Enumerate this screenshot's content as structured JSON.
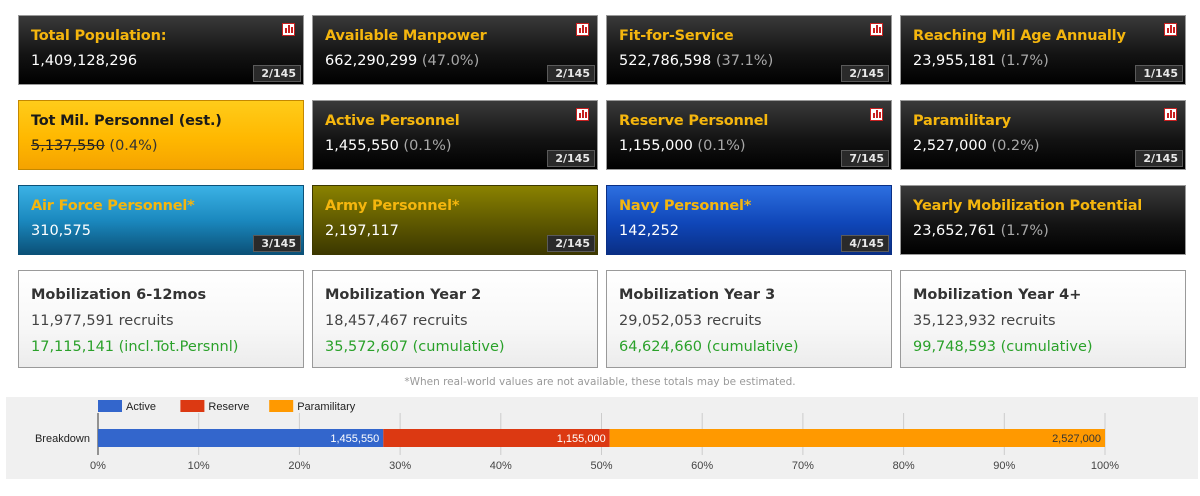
{
  "cards": {
    "total_population": {
      "title": "Total Population:",
      "value": "1,409,128,296",
      "pct": "",
      "rank": "2/145"
    },
    "available_manpower": {
      "title": "Available Manpower",
      "value": "662,290,299",
      "pct": "(47.0%)",
      "rank": "2/145"
    },
    "fit_for_service": {
      "title": "Fit-for-Service",
      "value": "522,786,598",
      "pct": "(37.1%)",
      "rank": "2/145"
    },
    "reaching_mil_age": {
      "title": "Reaching Mil Age Annually",
      "value": "23,955,181",
      "pct": "(1.7%)",
      "rank": "1/145"
    },
    "tot_mil_personnel": {
      "title": "Tot Mil. Personnel (est.)",
      "value": "5,137,550",
      "pct": "(0.4%)"
    },
    "active_personnel": {
      "title": "Active Personnel",
      "value": "1,455,550",
      "pct": "(0.1%)",
      "rank": "2/145"
    },
    "reserve_personnel": {
      "title": "Reserve Personnel",
      "value": "1,155,000",
      "pct": "(0.1%)",
      "rank": "7/145"
    },
    "paramilitary": {
      "title": "Paramilitary",
      "value": "2,527,000",
      "pct": "(0.2%)",
      "rank": "2/145"
    },
    "air_force": {
      "title": "Air Force Personnel*",
      "value": "310,575",
      "rank": "3/145"
    },
    "army": {
      "title": "Army Personnel*",
      "value": "2,197,117",
      "rank": "2/145"
    },
    "navy": {
      "title": "Navy Personnel*",
      "value": "142,252",
      "rank": "4/145"
    },
    "yearly_mobilization": {
      "title": "Yearly Mobilization Potential",
      "value": "23,652,761",
      "pct": "(1.7%)"
    }
  },
  "mobilization": [
    {
      "title": "Mobilization 6-12mos",
      "recruits": "11,977,591 recruits",
      "cumulative": "17,115,141 (incl.Tot.Persnnl)"
    },
    {
      "title": "Mobilization Year 2",
      "recruits": "18,457,467 recruits",
      "cumulative": "35,572,607 (cumulative)"
    },
    {
      "title": "Mobilization Year 3",
      "recruits": "29,052,053 recruits",
      "cumulative": "64,624,660 (cumulative)"
    },
    {
      "title": "Mobilization Year 4+",
      "recruits": "35,123,932 recruits",
      "cumulative": "99,748,593 (cumulative)"
    }
  ],
  "footnote": "*When real-world values are not available, these totals may be estimated.",
  "colors": {
    "accent": "#f5b60e",
    "active": "#3366cc",
    "reserve": "#dc3912",
    "paramilitary": "#ff9900",
    "cumulative_green": "#2aa12a"
  },
  "chart_data": {
    "type": "bar",
    "stacked": "percent",
    "categories": [
      "Breakdown"
    ],
    "series": [
      {
        "name": "Active",
        "values": [
          1455550
        ],
        "label": "1,455,550",
        "color": "#3366cc"
      },
      {
        "name": "Reserve",
        "values": [
          1155000
        ],
        "label": "1,155,000",
        "color": "#dc3912"
      },
      {
        "name": "Paramilitary",
        "values": [
          2527000
        ],
        "label": "2,527,000",
        "color": "#ff9900"
      }
    ],
    "xticks": [
      "0%",
      "10%",
      "20%",
      "30%",
      "40%",
      "50%",
      "60%",
      "70%",
      "80%",
      "90%",
      "100%"
    ],
    "xlim": [
      0,
      100
    ],
    "grid": true,
    "legend": "top-left"
  }
}
